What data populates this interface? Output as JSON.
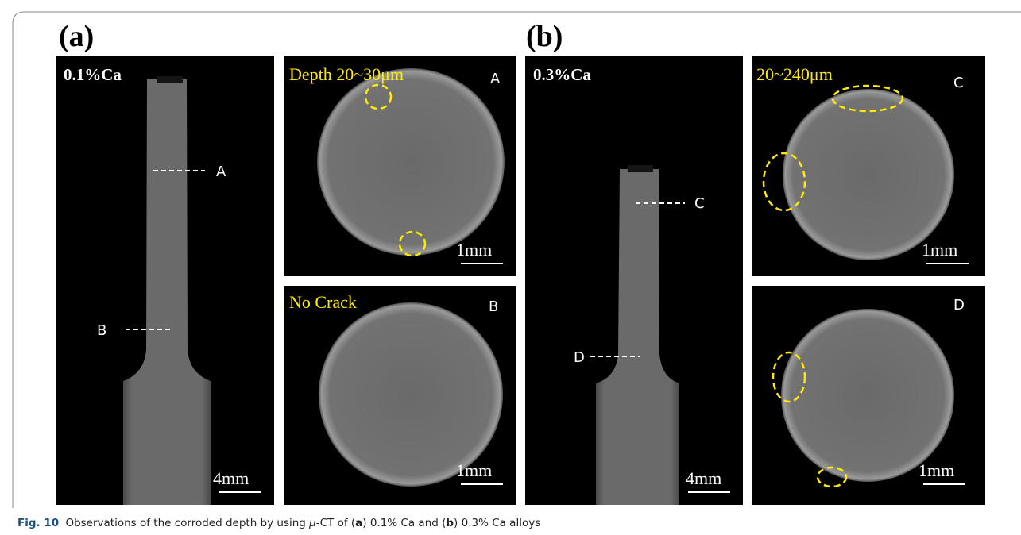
{
  "figure": {
    "a": {
      "label": "(a)",
      "specimen": {
        "title": "0.1%Ca",
        "scale": "4mm",
        "markers": [
          "A",
          "B"
        ]
      },
      "sections": [
        {
          "title": "Depth 20~30μm",
          "id": "A",
          "scale": "1mm"
        },
        {
          "title": "No Crack",
          "id": "B",
          "scale": "1mm"
        }
      ]
    },
    "b": {
      "label": "(b)",
      "specimen": {
        "title": "0.3%Ca",
        "scale": "4mm",
        "markers": [
          "C",
          "D"
        ]
      },
      "sections": [
        {
          "title": "20~240μm",
          "id": "C",
          "scale": "1mm"
        },
        {
          "title": "",
          "id": "D",
          "scale": "1mm"
        }
      ]
    }
  },
  "caption": {
    "fig": "Fig. 10",
    "parts": [
      "Observations of the corroded depth by using ",
      "μ",
      "-CT of (",
      "a",
      ") 0.1% Ca and (",
      "b",
      ") 0.3% Ca alloys"
    ]
  }
}
